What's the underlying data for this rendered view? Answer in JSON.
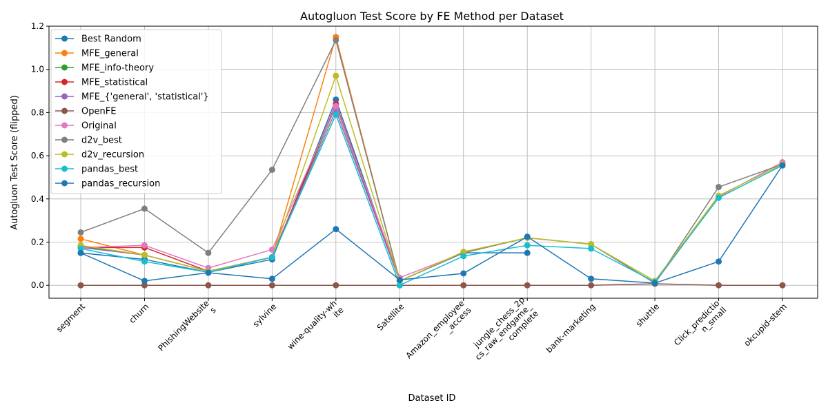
{
  "chart_data": {
    "type": "line",
    "title": "Autogluon Test Score by FE Method per Dataset",
    "xlabel": "Dataset ID",
    "ylabel": "Autogluon Test Score (flipped)",
    "ylim": [
      -0.06,
      1.2
    ],
    "yticks": [
      0.0,
      0.2,
      0.4,
      0.6,
      0.8,
      1.0,
      1.2
    ],
    "ytick_labels": [
      "0.0",
      "0.2",
      "0.4",
      "0.6",
      "0.8",
      "1.0",
      "1.2"
    ],
    "grid": true,
    "legend_position": "top-left",
    "categories": [
      [
        "segment"
      ],
      [
        "churn"
      ],
      [
        "PhishingWebsite",
        "s"
      ],
      [
        "sylvine"
      ],
      [
        "wine-quality-wh",
        "ite"
      ],
      [
        "Satellite"
      ],
      [
        "Amazon_employee",
        "_access"
      ],
      [
        "jungle_chess_2p",
        "cs_raw_endgame_",
        "complete"
      ],
      [
        "bank-marketing"
      ],
      [
        "shuttle"
      ],
      [
        "Click_predictio",
        "n_small"
      ],
      [
        "okcupid-stem"
      ]
    ],
    "series": [
      {
        "name": "Best Random",
        "color": "#1f77b4",
        "values": [
          0.15,
          0.12,
          0.06,
          0.12,
          0.86,
          0.02,
          0.15,
          0.15,
          null,
          null,
          null,
          null
        ]
      },
      {
        "name": "MFE_general",
        "color": "#ff7f0e",
        "values": [
          0.215,
          0.14,
          0.065,
          0.13,
          1.15,
          0.02,
          null,
          null,
          null,
          null,
          null,
          null
        ]
      },
      {
        "name": "MFE_info-theory",
        "color": "#2ca02c",
        "values": [
          0.18,
          0.14,
          0.065,
          0.13,
          0.83,
          0.02,
          null,
          null,
          null,
          null,
          null,
          null
        ]
      },
      {
        "name": "MFE_statistical",
        "color": "#d62728",
        "values": [
          0.175,
          0.175,
          0.065,
          0.13,
          0.84,
          0.02,
          null,
          null,
          null,
          null,
          null,
          null
        ]
      },
      {
        "name": "MFE_{'general', 'statistical'}",
        "color": "#9467bd",
        "values": [
          0.175,
          0.14,
          0.065,
          0.13,
          0.81,
          0.02,
          null,
          null,
          null,
          null,
          null,
          null
        ]
      },
      {
        "name": "OpenFE",
        "color": "#8c564b",
        "values": [
          0.0,
          0.0,
          0.0,
          0.0,
          0.0,
          0.0,
          0.0,
          0.0,
          0.0,
          0.007,
          0.0,
          0.0
        ]
      },
      {
        "name": "Original",
        "color": "#e377c2",
        "values": [
          0.175,
          0.185,
          0.08,
          0.165,
          0.83,
          0.035,
          0.15,
          0.22,
          0.19,
          0.01,
          0.41,
          0.57
        ]
      },
      {
        "name": "d2v_best",
        "color": "#7f7f7f",
        "values": [
          0.245,
          0.355,
          0.15,
          0.535,
          1.135,
          0.02,
          0.15,
          0.22,
          0.19,
          0.01,
          0.455,
          0.56
        ]
      },
      {
        "name": "d2v_recursion",
        "color": "#bcbd22",
        "values": [
          0.185,
          0.14,
          0.065,
          0.13,
          0.97,
          0.02,
          0.155,
          0.22,
          0.19,
          0.02,
          0.415,
          0.56
        ]
      },
      {
        "name": "pandas_best",
        "color": "#17becf",
        "values": [
          0.17,
          0.11,
          0.06,
          0.13,
          0.79,
          0.0,
          0.135,
          0.185,
          0.17,
          0.015,
          0.405,
          0.555
        ]
      },
      {
        "name": "pandas_recursion",
        "color": "#1f77b4",
        "values": [
          0.15,
          0.02,
          0.058,
          0.03,
          0.26,
          0.025,
          0.055,
          0.225,
          0.03,
          0.01,
          0.11,
          0.555
        ]
      }
    ]
  }
}
